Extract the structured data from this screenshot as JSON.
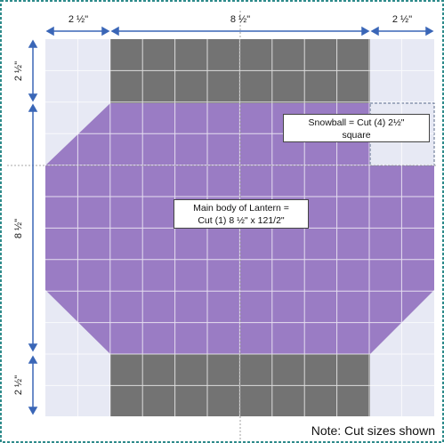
{
  "dimensions": {
    "top": [
      "2 ½\"",
      "8 ½\"",
      "2 ½\""
    ],
    "left": [
      "2 ½\"",
      "8 ½\"",
      "2 ½\""
    ]
  },
  "labels": {
    "snowball_line1": "Snowball = Cut (4)  2½\"",
    "snowball_line2": "square",
    "body_line1": "Main body of Lantern =",
    "body_line2": "Cut (1) 8 ½\" x 121/2\"",
    "note": "Note:  Cut sizes shown"
  },
  "colors": {
    "purple": "#9a7cc4",
    "gray": "#737373",
    "background": "#e7e9f4",
    "dimension": "#3a66b7",
    "border": "#2e8b8b"
  }
}
